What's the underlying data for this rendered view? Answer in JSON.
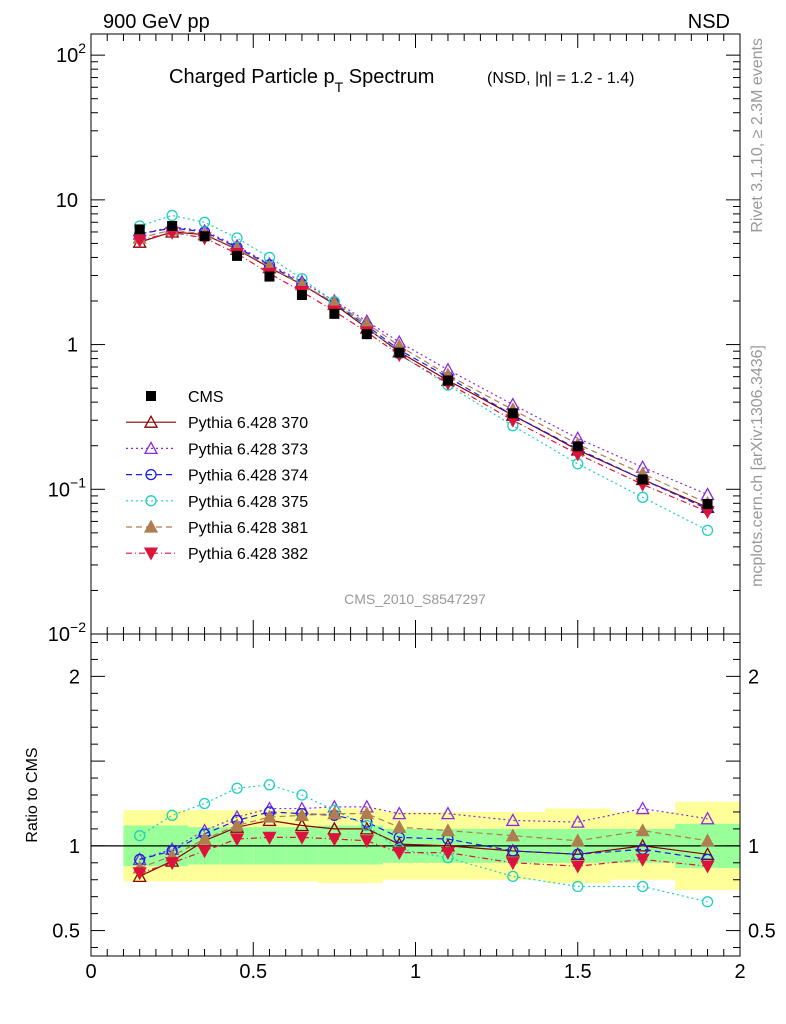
{
  "header": {
    "left": "900 GeV pp",
    "right": "NSD"
  },
  "side_labels": {
    "top": "Rivet 3.1.10, ≥ 2.3M events",
    "bottom": "mcplots.cern.ch [arXiv:1306.3436]"
  },
  "watermark": "CMS_2010_S8547297",
  "chart_data": [
    {
      "type": "line",
      "title_main": "Charged Particle p",
      "title_sub": "T",
      "title_rest": " Spectrum",
      "title_small": "(NSD, |η| = 1.2 - 1.4)",
      "log_y": true,
      "xlim": [
        0,
        2
      ],
      "ylim": [
        0.01,
        140
      ],
      "ytick_labels": [
        {
          "value": 100,
          "base": "10",
          "exp": "2"
        },
        {
          "value": 10,
          "base": "10",
          "exp": ""
        },
        {
          "value": 1,
          "base": "1",
          "exp": ""
        },
        {
          "value": 0.1,
          "base": "10",
          "exp": "−1"
        },
        {
          "value": 0.01,
          "base": "10",
          "exp": "−2"
        }
      ],
      "x": [
        0.15,
        0.25,
        0.35,
        0.45,
        0.55,
        0.65,
        0.75,
        0.85,
        0.95,
        1.1,
        1.3,
        1.5,
        1.7,
        1.9
      ],
      "reference": {
        "name": "CMS",
        "values": [
          6.25,
          6.6,
          5.6,
          4.1,
          2.95,
          2.2,
          1.63,
          1.18,
          0.88,
          0.565,
          0.335,
          0.198,
          0.117,
          0.079
        ]
      },
      "series": [
        {
          "name": "Pythia 6.428 370",
          "color": "#8b0000",
          "dash": "",
          "marker": "triangle-open",
          "values": [
            5.1,
            6.0,
            5.75,
            4.55,
            3.4,
            2.6,
            1.9,
            1.3,
            0.89,
            0.565,
            0.325,
            0.187,
            0.117,
            0.075
          ]
        },
        {
          "name": "Pythia 6.428 373",
          "color": "#8a2be2",
          "dash": "2,3",
          "marker": "triangle-open",
          "values": [
            5.8,
            6.5,
            6.1,
            4.8,
            3.6,
            2.72,
            2.0,
            1.45,
            1.04,
            0.67,
            0.385,
            0.225,
            0.142,
            0.092
          ]
        },
        {
          "name": "Pythia 6.428 374",
          "color": "#1c1ce6",
          "dash": "6,4",
          "marker": "circle-open",
          "values": [
            5.8,
            6.4,
            6.0,
            4.7,
            3.55,
            2.62,
            1.92,
            1.35,
            0.92,
            0.595,
            0.325,
            0.19,
            0.117,
            0.073
          ]
        },
        {
          "name": "Pythia 6.428 375",
          "color": "#20d0c0",
          "dash": "2,3",
          "marker": "circle-open",
          "values": [
            6.6,
            7.8,
            7.0,
            5.45,
            4.0,
            2.85,
            1.98,
            1.32,
            0.86,
            0.525,
            0.275,
            0.15,
            0.088,
            0.052
          ]
        },
        {
          "name": "Pythia 6.428 381",
          "color": "#b07d50",
          "dash": "6,4",
          "marker": "triangle-filled",
          "values": [
            5.45,
            6.2,
            5.8,
            4.6,
            3.45,
            2.6,
            1.95,
            1.4,
            0.98,
            0.615,
            0.355,
            0.205,
            0.128,
            0.08
          ]
        },
        {
          "name": "Pythia 6.428 382",
          "color": "#dc143c",
          "dash": "6,3,1,3",
          "marker": "triangle-down-filled",
          "values": [
            5.25,
            5.95,
            5.45,
            4.25,
            3.1,
            2.32,
            1.7,
            1.22,
            0.85,
            0.54,
            0.3,
            0.175,
            0.108,
            0.07
          ]
        }
      ]
    },
    {
      "type": "line",
      "ylabel": "Ratio to CMS",
      "xlim": [
        0,
        2
      ],
      "ylim": [
        0.35,
        2.25
      ],
      "xtick_labels": [
        {
          "value": 0,
          "label": "0"
        },
        {
          "value": 0.5,
          "label": "0.5"
        },
        {
          "value": 1,
          "label": "1"
        },
        {
          "value": 1.5,
          "label": "1.5"
        },
        {
          "value": 2,
          "label": "2"
        }
      ],
      "ytick_labels": [
        {
          "value": 2,
          "label": "2"
        },
        {
          "value": 1,
          "label": "1"
        },
        {
          "value": 0.5,
          "label": "0.5"
        }
      ],
      "bands": [
        {
          "x0": 0.1,
          "x1": 0.2,
          "inner": [
            0.88,
            1.12
          ],
          "outer": [
            0.79,
            1.21
          ]
        },
        {
          "x0": 0.2,
          "x1": 0.3,
          "inner": [
            0.88,
            1.12
          ],
          "outer": [
            0.79,
            1.21
          ]
        },
        {
          "x0": 0.3,
          "x1": 0.4,
          "inner": [
            0.89,
            1.11
          ],
          "outer": [
            0.79,
            1.21
          ]
        },
        {
          "x0": 0.4,
          "x1": 0.5,
          "inner": [
            0.89,
            1.11
          ],
          "outer": [
            0.79,
            1.21
          ]
        },
        {
          "x0": 0.5,
          "x1": 0.6,
          "inner": [
            0.89,
            1.11
          ],
          "outer": [
            0.79,
            1.21
          ]
        },
        {
          "x0": 0.6,
          "x1": 0.7,
          "inner": [
            0.89,
            1.11
          ],
          "outer": [
            0.79,
            1.21
          ]
        },
        {
          "x0": 0.7,
          "x1": 0.8,
          "inner": [
            0.89,
            1.12
          ],
          "outer": [
            0.78,
            1.22
          ]
        },
        {
          "x0": 0.8,
          "x1": 0.9,
          "inner": [
            0.89,
            1.12
          ],
          "outer": [
            0.78,
            1.22
          ]
        },
        {
          "x0": 0.9,
          "x1": 1.0,
          "inner": [
            0.9,
            1.1
          ],
          "outer": [
            0.8,
            1.2
          ]
        },
        {
          "x0": 1.0,
          "x1": 1.2,
          "inner": [
            0.9,
            1.1
          ],
          "outer": [
            0.8,
            1.2
          ]
        },
        {
          "x0": 1.2,
          "x1": 1.4,
          "inner": [
            0.9,
            1.1
          ],
          "outer": [
            0.8,
            1.2
          ]
        },
        {
          "x0": 1.4,
          "x1": 1.6,
          "inner": [
            0.9,
            1.1
          ],
          "outer": [
            0.78,
            1.22
          ]
        },
        {
          "x0": 1.6,
          "x1": 1.8,
          "inner": [
            0.9,
            1.1
          ],
          "outer": [
            0.8,
            1.2
          ]
        },
        {
          "x0": 1.8,
          "x1": 2.0,
          "inner": [
            0.87,
            1.13
          ],
          "outer": [
            0.74,
            1.26
          ]
        }
      ],
      "band_colors": {
        "inner": "#99ff99",
        "outer": "#ffff99"
      },
      "series": [
        {
          "name": "Pythia 6.428 370",
          "values": [
            0.82,
            0.91,
            1.03,
            1.11,
            1.15,
            1.12,
            1.1,
            1.1,
            1.01,
            1.0,
            0.97,
            0.95,
            1.0,
            0.95
          ]
        },
        {
          "name": "Pythia 6.428 373",
          "values": [
            0.92,
            0.98,
            1.09,
            1.17,
            1.22,
            1.22,
            1.23,
            1.23,
            1.19,
            1.19,
            1.15,
            1.14,
            1.22,
            1.16
          ]
        },
        {
          "name": "Pythia 6.428 374",
          "values": [
            0.92,
            0.97,
            1.07,
            1.15,
            1.2,
            1.19,
            1.18,
            1.14,
            1.05,
            1.04,
            0.97,
            0.95,
            0.98,
            0.92
          ]
        },
        {
          "name": "Pythia 6.428 375",
          "values": [
            1.06,
            1.18,
            1.25,
            1.34,
            1.36,
            1.3,
            1.21,
            1.12,
            0.98,
            0.93,
            0.82,
            0.76,
            0.76,
            0.67
          ]
        },
        {
          "name": "Pythia 6.428 381",
          "values": [
            0.87,
            0.94,
            1.04,
            1.12,
            1.17,
            1.18,
            1.19,
            1.19,
            1.11,
            1.09,
            1.06,
            1.03,
            1.09,
            1.03
          ]
        },
        {
          "name": "Pythia 6.428 382",
          "values": [
            0.84,
            0.9,
            0.97,
            1.04,
            1.05,
            1.05,
            1.04,
            1.03,
            0.96,
            0.96,
            0.9,
            0.88,
            0.92,
            0.88
          ]
        }
      ]
    }
  ]
}
